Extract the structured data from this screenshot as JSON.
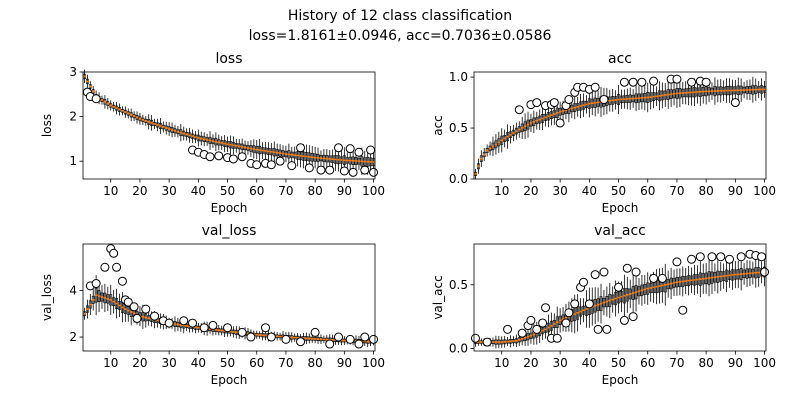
{
  "figure": {
    "title_line1": "History of 12 class classification",
    "title_line2": "loss=1.8161±0.0946, acc=0.7036±0.0586"
  },
  "chart_data": [
    {
      "type": "box",
      "title": "loss",
      "xlabel": "Epoch",
      "ylabel": "loss",
      "xlim": [
        0.5,
        100.5
      ],
      "ylim": [
        0.6,
        3.0
      ],
      "xticks": [
        10,
        20,
        30,
        40,
        50,
        60,
        70,
        80,
        90,
        100
      ],
      "yticks": [
        1,
        2,
        3
      ],
      "ytick_labels": [
        "1",
        "2",
        "3"
      ],
      "median": {
        "epochs": [
          1,
          5,
          10,
          20,
          30,
          40,
          50,
          60,
          70,
          80,
          90,
          100
        ],
        "values": [
          2.9,
          2.45,
          2.25,
          1.95,
          1.72,
          1.52,
          1.38,
          1.26,
          1.16,
          1.08,
          1.02,
          0.98
        ]
      },
      "spread": {
        "epochs": [
          1,
          10,
          30,
          60,
          100
        ],
        "values": [
          0.15,
          0.12,
          0.15,
          0.2,
          0.25
        ]
      },
      "outliers": [
        [
          2,
          2.55
        ],
        [
          3,
          2.45
        ],
        [
          5,
          2.4
        ],
        [
          38,
          1.25
        ],
        [
          40,
          1.2
        ],
        [
          42,
          1.15
        ],
        [
          44,
          1.1
        ],
        [
          47,
          1.12
        ],
        [
          50,
          1.08
        ],
        [
          52,
          1.05
        ],
        [
          55,
          1.1
        ],
        [
          58,
          0.95
        ],
        [
          60,
          0.92
        ],
        [
          63,
          0.95
        ],
        [
          65,
          0.92
        ],
        [
          68,
          1.0
        ],
        [
          72,
          0.9
        ],
        [
          75,
          1.3
        ],
        [
          78,
          0.85
        ],
        [
          82,
          0.8
        ],
        [
          85,
          0.8
        ],
        [
          88,
          1.3
        ],
        [
          90,
          0.78
        ],
        [
          92,
          1.28
        ],
        [
          93,
          0.75
        ],
        [
          95,
          1.2
        ],
        [
          97,
          0.8
        ],
        [
          99,
          1.25
        ],
        [
          100,
          0.75
        ]
      ]
    },
    {
      "type": "box",
      "title": "acc",
      "xlabel": "Epoch",
      "ylabel": "acc",
      "xlim": [
        0.5,
        100.5
      ],
      "ylim": [
        0.0,
        1.05
      ],
      "xticks": [
        10,
        20,
        30,
        40,
        50,
        60,
        70,
        80,
        90,
        100
      ],
      "yticks": [
        0.0,
        0.5,
        1.0
      ],
      "ytick_labels": [
        "0.0",
        "0.5",
        "1.0"
      ],
      "median": {
        "epochs": [
          1,
          3,
          5,
          10,
          15,
          20,
          30,
          40,
          50,
          60,
          70,
          80,
          90,
          100
        ],
        "values": [
          0.05,
          0.2,
          0.28,
          0.38,
          0.47,
          0.55,
          0.66,
          0.74,
          0.78,
          0.8,
          0.84,
          0.86,
          0.87,
          0.88
        ]
      },
      "spread": {
        "epochs": [
          1,
          10,
          30,
          60,
          100
        ],
        "values": [
          0.06,
          0.1,
          0.12,
          0.12,
          0.1
        ]
      },
      "outliers": [
        [
          16,
          0.68
        ],
        [
          20,
          0.73
        ],
        [
          22,
          0.75
        ],
        [
          25,
          0.72
        ],
        [
          27,
          0.73
        ],
        [
          28,
          0.75
        ],
        [
          30,
          0.55
        ],
        [
          32,
          0.72
        ],
        [
          33,
          0.78
        ],
        [
          35,
          0.85
        ],
        [
          36,
          0.9
        ],
        [
          38,
          0.9
        ],
        [
          40,
          0.88
        ],
        [
          42,
          0.9
        ],
        [
          45,
          0.78
        ],
        [
          52,
          0.95
        ],
        [
          55,
          0.95
        ],
        [
          58,
          0.95
        ],
        [
          62,
          0.96
        ],
        [
          68,
          0.98
        ],
        [
          70,
          0.98
        ],
        [
          75,
          0.95
        ],
        [
          78,
          0.96
        ],
        [
          80,
          0.95
        ],
        [
          90,
          0.75
        ]
      ]
    },
    {
      "type": "box",
      "title": "val_loss",
      "xlabel": "Epoch",
      "ylabel": "val_loss",
      "xlim": [
        0.5,
        100.5
      ],
      "ylim": [
        1.4,
        6.0
      ],
      "xticks": [
        10,
        20,
        30,
        40,
        50,
        60,
        70,
        80,
        90,
        100
      ],
      "yticks": [
        2,
        4
      ],
      "ytick_labels": [
        "2",
        "4"
      ],
      "median": {
        "epochs": [
          1,
          5,
          10,
          15,
          20,
          30,
          40,
          50,
          60,
          70,
          80,
          90,
          100
        ],
        "values": [
          3.0,
          3.8,
          3.6,
          3.2,
          2.9,
          2.6,
          2.4,
          2.25,
          2.1,
          2.0,
          1.92,
          1.85,
          1.8
        ]
      },
      "spread": {
        "epochs": [
          1,
          5,
          10,
          30,
          60,
          100
        ],
        "values": [
          0.3,
          0.7,
          0.6,
          0.3,
          0.2,
          0.2
        ]
      },
      "outliers": [
        [
          3,
          4.2
        ],
        [
          5,
          4.3
        ],
        [
          8,
          5.0
        ],
        [
          10,
          5.8
        ],
        [
          11,
          5.6
        ],
        [
          12,
          5.0
        ],
        [
          14,
          4.4
        ],
        [
          15,
          3.6
        ],
        [
          16,
          3.5
        ],
        [
          18,
          3.3
        ],
        [
          19,
          2.8
        ],
        [
          22,
          3.2
        ],
        [
          25,
          2.9
        ],
        [
          28,
          2.7
        ],
        [
          30,
          2.6
        ],
        [
          35,
          2.7
        ],
        [
          38,
          2.6
        ],
        [
          42,
          2.4
        ],
        [
          45,
          2.5
        ],
        [
          50,
          2.4
        ],
        [
          55,
          2.2
        ],
        [
          58,
          2.0
        ],
        [
          63,
          2.4
        ],
        [
          65,
          2.0
        ],
        [
          70,
          1.9
        ],
        [
          75,
          1.8
        ],
        [
          80,
          2.2
        ],
        [
          85,
          1.7
        ],
        [
          88,
          2.0
        ],
        [
          92,
          1.9
        ],
        [
          95,
          1.7
        ],
        [
          97,
          2.0
        ],
        [
          100,
          1.9
        ]
      ]
    },
    {
      "type": "box",
      "title": "val_acc",
      "xlabel": "Epoch",
      "ylabel": "val_acc",
      "xlim": [
        0.5,
        100.5
      ],
      "ylim": [
        -0.02,
        0.82
      ],
      "xticks": [
        10,
        20,
        30,
        40,
        50,
        60,
        70,
        80,
        90,
        100
      ],
      "yticks": [
        0.0,
        0.5
      ],
      "ytick_labels": [
        "0.0",
        "0.5"
      ],
      "median": {
        "epochs": [
          1,
          10,
          15,
          20,
          25,
          30,
          40,
          50,
          60,
          70,
          80,
          90,
          100
        ],
        "values": [
          0.05,
          0.05,
          0.06,
          0.1,
          0.15,
          0.22,
          0.32,
          0.4,
          0.47,
          0.52,
          0.55,
          0.58,
          0.6
        ]
      },
      "spread": {
        "epochs": [
          1,
          15,
          30,
          60,
          100
        ],
        "values": [
          0.03,
          0.05,
          0.12,
          0.14,
          0.1
        ]
      },
      "outliers": [
        [
          1,
          0.08
        ],
        [
          5,
          0.05
        ],
        [
          12,
          0.15
        ],
        [
          17,
          0.12
        ],
        [
          19,
          0.18
        ],
        [
          20,
          0.22
        ],
        [
          22,
          0.15
        ],
        [
          24,
          0.2
        ],
        [
          25,
          0.32
        ],
        [
          27,
          0.08
        ],
        [
          29,
          0.08
        ],
        [
          32,
          0.2
        ],
        [
          33,
          0.28
        ],
        [
          35,
          0.35
        ],
        [
          37,
          0.48
        ],
        [
          38,
          0.52
        ],
        [
          40,
          0.35
        ],
        [
          42,
          0.58
        ],
        [
          43,
          0.15
        ],
        [
          45,
          0.6
        ],
        [
          46,
          0.15
        ],
        [
          50,
          0.48
        ],
        [
          52,
          0.22
        ],
        [
          53,
          0.63
        ],
        [
          55,
          0.25
        ],
        [
          56,
          0.6
        ],
        [
          62,
          0.55
        ],
        [
          65,
          0.55
        ],
        [
          70,
          0.68
        ],
        [
          72,
          0.3
        ],
        [
          75,
          0.7
        ],
        [
          78,
          0.72
        ],
        [
          82,
          0.72
        ],
        [
          85,
          0.72
        ],
        [
          88,
          0.7
        ],
        [
          92,
          0.72
        ],
        [
          95,
          0.74
        ],
        [
          97,
          0.73
        ],
        [
          99,
          0.72
        ],
        [
          100,
          0.6
        ]
      ]
    }
  ],
  "colors": {
    "median": "#ff7f0e",
    "box": "#000000",
    "outlier_edge": "#000000",
    "outlier_fill": "#ffffff"
  }
}
